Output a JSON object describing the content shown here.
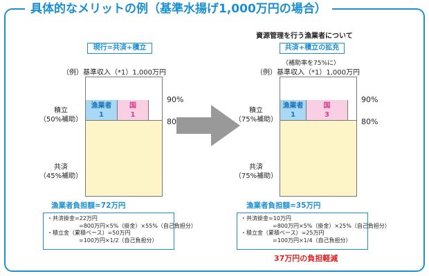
{
  "title": "具体的なメリットの例（基準水揚げ1,000万円の場合）",
  "left": {
    "badge": "現行=共済+積立",
    "income": "（例）基準収入（*1）1,000万円",
    "seg_fisher_name": "漁業者",
    "seg_fisher_num": "1",
    "seg_gov_name": "国",
    "seg_gov_num": "1",
    "pct_90": "90%",
    "pct_80": "80%",
    "tsumitate": "積立",
    "tsumitate_sub": "（50%補助）",
    "kyosai": "共済",
    "kyosai_sub": "（45%補助）",
    "burden": "漁業者負担額=72万円",
    "detail1": "・共済掛金=22万円",
    "detail2": "=800万円×5%（掛金）×55%（自己負担分）",
    "detail3": "・積立金（累積ベース）=50万円",
    "detail4": "=100万円×1/2（自己負担分）"
  },
  "right": {
    "heading": "資源管理を行う漁業者について",
    "badge": "共済+積立の拡充",
    "note": "（補助率を75%に）",
    "income": "（例）基準収入（*1）1,000万円",
    "seg_fisher_name": "漁業者",
    "seg_fisher_num": "1",
    "seg_gov_name": "国",
    "seg_gov_num": "3",
    "pct_90": "90%",
    "pct_80": "80%",
    "tsumitate": "積立",
    "tsumitate_sub": "（75%補助）",
    "kyosai": "共済",
    "kyosai_sub": "（75%補助）",
    "burden": "漁業者負担額=35万円",
    "detail1": "・共済掛金=10万円",
    "detail2": "=800万円×5%（掛金）×25%（自己負担分）",
    "detail3": "・積立金（累積ベース）=25万円",
    "detail4": "=100万円×1/4（自己負担分）",
    "reduction": "37万円の負担軽減"
  },
  "colors": {
    "accent": "#1c8fd0",
    "fisher": "#a9d8f4",
    "government": "#f9d0e3",
    "kyosai": "#fdf5c7",
    "arrow": "#999999",
    "reduction": "#e02020"
  }
}
